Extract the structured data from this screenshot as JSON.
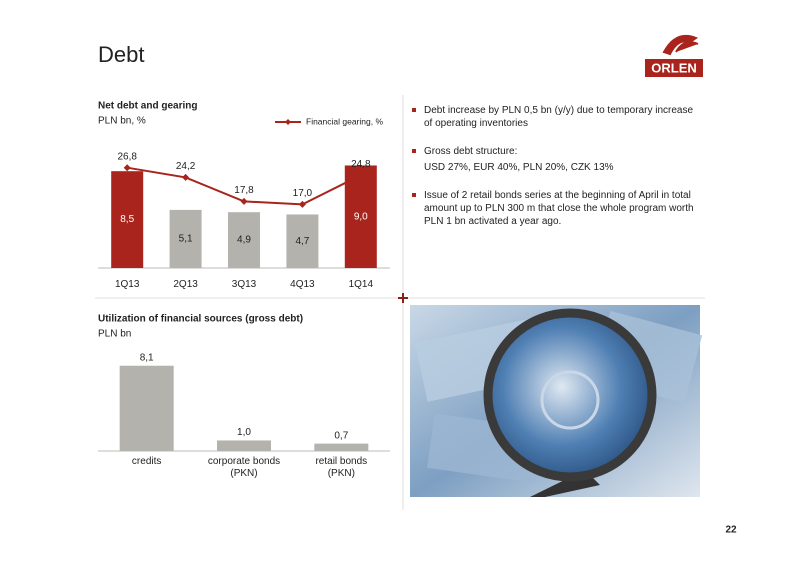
{
  "header": {
    "title": "Debt",
    "logo": "ORLEN",
    "page": "22"
  },
  "chart_data": [
    {
      "type": "bar",
      "title": "Net debt and gearing",
      "subtitle": "PLN bn, %",
      "categories": [
        "1Q13",
        "2Q13",
        "3Q13",
        "4Q13",
        "1Q14"
      ],
      "series": [
        {
          "type": "bar",
          "colors": [
            "#a8241c",
            "#b3b2ad",
            "#b3b2ad",
            "#b3b2ad",
            "#a8241c"
          ],
          "values": [
            8.5,
            5.1,
            4.9,
            4.7,
            9.0
          ],
          "value_labels": [
            "8,5",
            "5,1",
            "4,9",
            "4,7",
            "9,0"
          ]
        },
        {
          "name": "Financial gearing, %",
          "type": "line",
          "axis": "y2",
          "color": "#a8241c",
          "values": [
            26.8,
            24.2,
            17.8,
            17.0,
            24.8
          ],
          "value_labels": [
            "26,8",
            "24,2",
            "17,8",
            "17,0",
            "24,8"
          ]
        }
      ],
      "ylim": [
        0,
        11.5
      ],
      "y2lim": [
        0,
        35
      ],
      "legend": "top-right"
    },
    {
      "type": "bar",
      "title": "Utilization of financial sources (gross debt)",
      "subtitle": "PLN bn",
      "categories": [
        "credits",
        "corporate bonds\n(PKN)",
        "retail bonds\n(PKN)"
      ],
      "values": [
        8.1,
        1.0,
        0.7
      ],
      "value_labels": [
        "8,1",
        "1,0",
        "0,7"
      ],
      "color": "#b3b2ad",
      "ylim": [
        0,
        9.5
      ]
    }
  ],
  "bullets": [
    {
      "text": "Debt increase by PLN 0,5 bn (y/y) due to temporary increase of operating inventories"
    },
    {
      "text": "Gross debt structure:",
      "detail": "USD 27%, EUR 40%, PLN 20%, CZK 13%"
    },
    {
      "text": "Issue of 2 retail bonds series at the beginning of April in total amount up to PLN 300 m that close the whole program worth PLN 1 bn activated a year ago."
    }
  ]
}
